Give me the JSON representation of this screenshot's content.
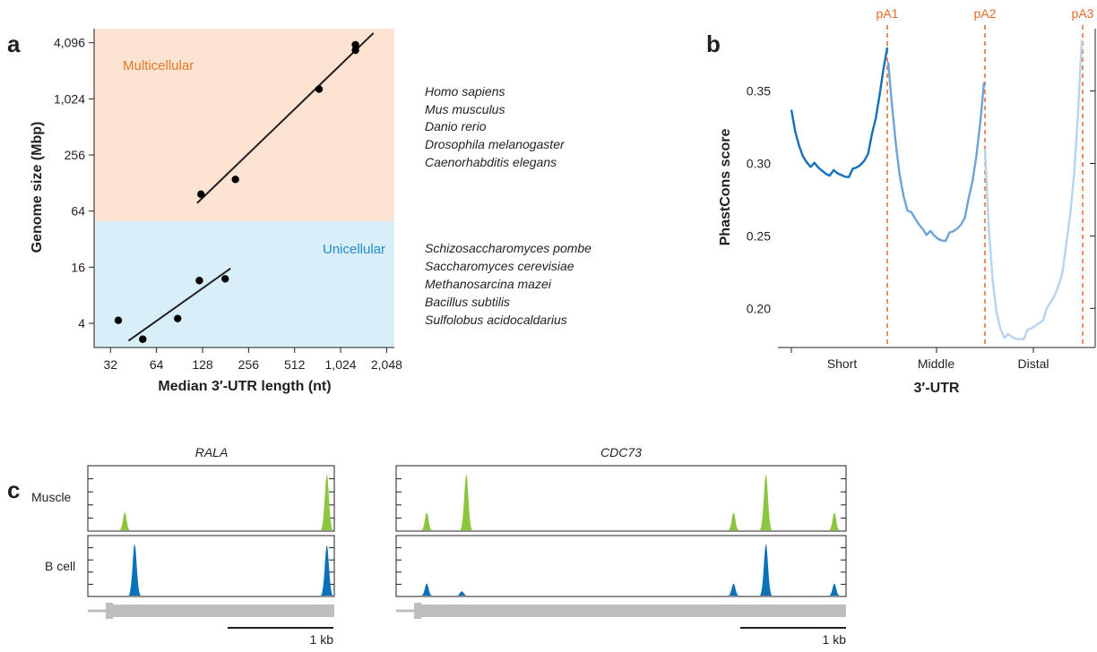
{
  "colors": {
    "multicellular_bg": "#fde3d2",
    "unicellular_bg": "#d8eef9",
    "multicellular_text": "#e07a2b",
    "unicellular_text": "#1f8cc8",
    "pa_line": "#e36b2a",
    "short_line": "#1570b8",
    "middle_line": "#6fa3d6",
    "distal_line": "#b7d3ee",
    "muscle_peak": "#8cc63f",
    "bcell_peak": "#0b72b9",
    "gene_model": "#bcbec0"
  },
  "chart_data": [
    {
      "panel": "a",
      "type": "scatter",
      "xlabel": "Median 3′-UTR length (nt)",
      "ylabel": "Genome size (Mbp)",
      "x_scale": "log2",
      "y_scale": "log2",
      "xlim": [
        25,
        2300
      ],
      "ylim": [
        2.2,
        5800
      ],
      "x_ticks": [
        32,
        64,
        128,
        256,
        512,
        1024,
        2048
      ],
      "x_tick_labels": [
        "32",
        "64",
        "128",
        "256",
        "512",
        "1,024",
        "2,048"
      ],
      "y_ticks": [
        4,
        16,
        64,
        256,
        1024,
        4096
      ],
      "y_tick_labels": [
        "4",
        "16",
        "64",
        "256",
        "1,024",
        "4,096"
      ],
      "region_split_y": 50,
      "regions": [
        {
          "name": "Multicellular",
          "species": [
            "Homo sapiens",
            "Mus musculus",
            "Danio rerio",
            "Drosophila melanogaster",
            "Caenorhabditis elegans"
          ]
        },
        {
          "name": "Unicellular",
          "species": [
            "Schizosaccharomyces pombe",
            "Saccharomyces cerevisiae",
            "Methanosarcina mazei",
            "Bacillus subtilis",
            "Sulfolobus acidocaldarius"
          ]
        }
      ],
      "points_multicellular": [
        {
          "x": 125,
          "y": 97
        },
        {
          "x": 210,
          "y": 140
        },
        {
          "x": 740,
          "y": 1300
        },
        {
          "x": 1280,
          "y": 3400
        },
        {
          "x": 1280,
          "y": 3900
        }
      ],
      "points_unicellular": [
        {
          "x": 36,
          "y": 4.3
        },
        {
          "x": 52,
          "y": 2.7
        },
        {
          "x": 88,
          "y": 4.5
        },
        {
          "x": 122,
          "y": 11.5
        },
        {
          "x": 180,
          "y": 12
        }
      ],
      "fit_multicellular": [
        {
          "x": 118,
          "y": 78
        },
        {
          "x": 1680,
          "y": 5200
        }
      ],
      "fit_unicellular": [
        {
          "x": 42,
          "y": 2.6
        },
        {
          "x": 195,
          "y": 15.5
        }
      ]
    },
    {
      "panel": "b",
      "type": "line",
      "xlabel": "3′-UTR",
      "ylabel": "PhastCons score",
      "ylim": [
        0.173,
        0.393
      ],
      "y_ticks": [
        0.2,
        0.25,
        0.3,
        0.35
      ],
      "y_tick_labels": [
        "0.20",
        "0.25",
        "0.30",
        "0.35"
      ],
      "segments": [
        "Short",
        "Middle",
        "Distal"
      ],
      "pa_sites": [
        "pA1",
        "pA2",
        "pA3"
      ],
      "series": [
        {
          "segment": "Short",
          "values": [
            0.337,
            0.322,
            0.311,
            0.305,
            0.302,
            0.3,
            0.298,
            0.296,
            0.295,
            0.294,
            0.294,
            0.293,
            0.292,
            0.292,
            0.292,
            0.293,
            0.294,
            0.296,
            0.299,
            0.303,
            0.309,
            0.318,
            0.33,
            0.347,
            0.365,
            0.38
          ]
        },
        {
          "segment": "Middle",
          "values": [
            0.37,
            0.34,
            0.312,
            0.292,
            0.279,
            0.27,
            0.264,
            0.261,
            0.258,
            0.256,
            0.253,
            0.251,
            0.249,
            0.248,
            0.248,
            0.249,
            0.25,
            0.252,
            0.255,
            0.259,
            0.265,
            0.274,
            0.287,
            0.305,
            0.328,
            0.356
          ]
        },
        {
          "segment": "Distal",
          "values": [
            0.31,
            0.255,
            0.218,
            0.197,
            0.187,
            0.182,
            0.18,
            0.179,
            0.179,
            0.18,
            0.181,
            0.183,
            0.185,
            0.188,
            0.191,
            0.194,
            0.198,
            0.203,
            0.209,
            0.217,
            0.227,
            0.242,
            0.263,
            0.292,
            0.333,
            0.385
          ]
        }
      ]
    },
    {
      "panel": "c",
      "type": "area",
      "tracks": [
        "Muscle",
        "B cell"
      ],
      "scale_bar_label": "1 kb",
      "genes": [
        {
          "name": "RALA",
          "peaks": [
            {
              "pos": 0.15,
              "muscle": 0.3,
              "bcell": 0.0
            },
            {
              "pos": 0.19,
              "muscle": 0.0,
              "bcell": 0.95
            },
            {
              "pos": 0.97,
              "muscle": 0.95,
              "bcell": 0.93
            }
          ]
        },
        {
          "name": "CDC73",
          "peaks": [
            {
              "pos": 0.068,
              "muscle": 0.3,
              "bcell": 0.22
            },
            {
              "pos": 0.156,
              "muscle": 0.95,
              "bcell": 0.0
            },
            {
              "pos": 0.146,
              "muscle": 0.0,
              "bcell": 0.08
            },
            {
              "pos": 0.75,
              "muscle": 0.3,
              "bcell": 0.22
            },
            {
              "pos": 0.822,
              "muscle": 0.95,
              "bcell": 0.95
            },
            {
              "pos": 0.974,
              "muscle": 0.3,
              "bcell": 0.22
            }
          ]
        }
      ]
    }
  ]
}
